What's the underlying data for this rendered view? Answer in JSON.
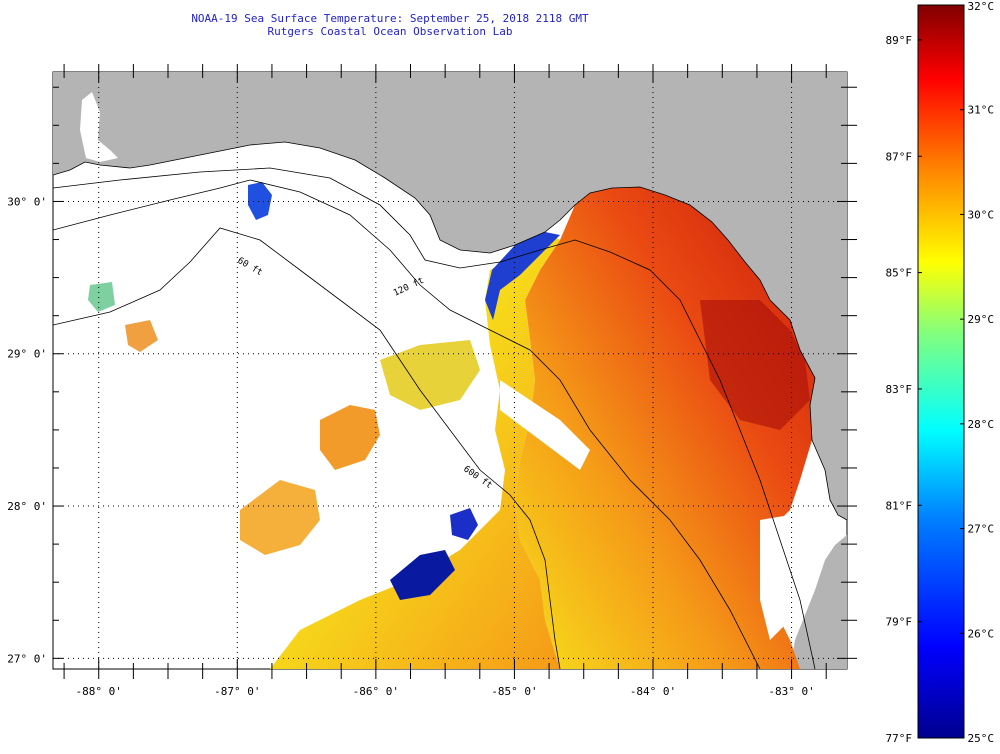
{
  "title": {
    "line1": "NOAA-19 Sea Surface Temperature:  September 25, 2018 2118 GMT",
    "line2": "Rutgers Coastal Ocean Observation Lab"
  },
  "map": {
    "lat_labels": [
      "30° 0'",
      "29° 0'",
      "28° 0'",
      "27° 0'"
    ],
    "lat_values": [
      30,
      29,
      28,
      27
    ],
    "lon_labels": [
      "-88° 0'",
      "-87° 0'",
      "-86° 0'",
      "-85° 0'",
      "-84° 0'",
      "-83° 0'"
    ],
    "lon_values": [
      -88,
      -87,
      -86,
      -85,
      -84,
      -83
    ],
    "lat_range": [
      26.93,
      30.85
    ],
    "lon_range": [
      -88.33,
      -82.6
    ],
    "contour_labels": [
      "60 ft",
      "120 ft",
      "600 ft"
    ],
    "colors": {
      "land": "#b4b4b4",
      "no_data": "#ffffff",
      "grid": "#000000"
    }
  },
  "colorbar": {
    "fahrenheit_labels": [
      "89°F",
      "87°F",
      "85°F",
      "83°F",
      "81°F",
      "79°F",
      "77°F"
    ],
    "celsius_labels": [
      "32°C",
      "31°C",
      "30°C",
      "29°C",
      "28°C",
      "27°C",
      "26°C",
      "25°C"
    ],
    "celsius_min": 25,
    "celsius_max": 32,
    "colors": [
      "#00008f",
      "#0000ff",
      "#0080ff",
      "#00ffff",
      "#80ff80",
      "#ffff00",
      "#ff8000",
      "#ff0000",
      "#800000"
    ]
  }
}
